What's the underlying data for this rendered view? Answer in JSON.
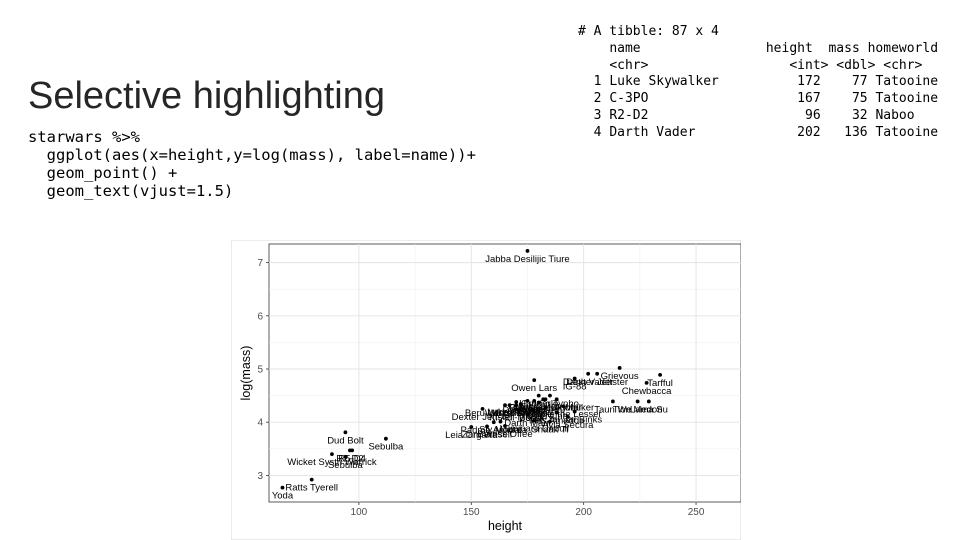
{
  "slide": {
    "title": "Selective highlighting",
    "code_lines": [
      "starwars %>%",
      "  ggplot(aes(x=height,y=log(mass), label=name))+",
      "  geom_point() +",
      "  geom_text(vjust=1.5)"
    ]
  },
  "tibble": {
    "header": "# A tibble: 87 x 4",
    "columns": [
      "name",
      "height",
      "mass",
      "homeworld"
    ],
    "types": [
      "<chr>",
      "<int>",
      "<dbl>",
      "<chr>"
    ],
    "rows": [
      {
        "idx": "1",
        "name": "Luke Skywalker",
        "height": "172",
        "mass": "77",
        "homeworld": "Tatooine"
      },
      {
        "idx": "2",
        "name": "C-3PO",
        "height": "167",
        "mass": "75",
        "homeworld": "Tatooine"
      },
      {
        "idx": "3",
        "name": "R2-D2",
        "height": "96",
        "mass": "32",
        "homeworld": "Naboo"
      },
      {
        "idx": "4",
        "name": "Darth Vader",
        "height": "202",
        "mass": "136",
        "homeworld": "Tatooine"
      }
    ]
  },
  "chart_data": {
    "type": "scatter",
    "xlabel": "height",
    "ylabel": "log(mass)",
    "xlim": [
      60,
      270
    ],
    "ylim": [
      2.5,
      7.35
    ],
    "xticks": [
      100,
      150,
      200,
      250
    ],
    "yticks": [
      3,
      4,
      5,
      6,
      7
    ],
    "grid": true,
    "points": [
      {
        "x": 175,
        "y": 7.22,
        "name": "Jabba Desilijic Tiure"
      },
      {
        "x": 66,
        "y": 2.77,
        "name": "Yoda"
      },
      {
        "x": 88,
        "y": 3.4,
        "name": "Wicket Systri Warrick"
      },
      {
        "x": 79,
        "y": 2.92,
        "name": "Ratts Tyerell"
      },
      {
        "x": 94,
        "y": 3.35,
        "name": "Sebulba"
      },
      {
        "x": 96,
        "y": 3.47,
        "name": "R2-D2"
      },
      {
        "x": 97,
        "y": 3.47,
        "name": "R5-D4"
      },
      {
        "x": 94,
        "y": 3.81,
        "name": "Dud Bolt"
      },
      {
        "x": 112,
        "y": 3.69,
        "name": "Sebulba"
      },
      {
        "x": 150,
        "y": 3.91,
        "name": "Leia Organa"
      },
      {
        "x": 172,
        "y": 4.34,
        "name": "Luke Skywalker"
      },
      {
        "x": 167,
        "y": 4.32,
        "name": "C-3PO"
      },
      {
        "x": 178,
        "y": 4.79,
        "name": "Owen Lars"
      },
      {
        "x": 165,
        "y": 4.32,
        "name": "Beru Whitesun lars"
      },
      {
        "x": 183,
        "y": 4.43,
        "name": "Biggs Darklighter"
      },
      {
        "x": 182,
        "y": 4.43,
        "name": "Obi-Wan Kenobi"
      },
      {
        "x": 188,
        "y": 4.43,
        "name": "Anakin Skywalker"
      },
      {
        "x": 180,
        "y": 4.5,
        "name": "Han Solo"
      },
      {
        "x": 170,
        "y": 4.32,
        "name": "Wedge Antilles"
      },
      {
        "x": 196,
        "y": 4.82,
        "name": "IG-88"
      },
      {
        "x": 202,
        "y": 4.91,
        "name": "Darth Vader"
      },
      {
        "x": 206,
        "y": 4.91,
        "name": "Dexter Jettster"
      },
      {
        "x": 216,
        "y": 5.02,
        "name": "Grievous"
      },
      {
        "x": 234,
        "y": 4.89,
        "name": "Tarfful"
      },
      {
        "x": 228,
        "y": 4.74,
        "name": "Chewbacca"
      },
      {
        "x": 229,
        "y": 4.39,
        "name": "Lama Su"
      },
      {
        "x": 213,
        "y": 4.39,
        "name": "Taun We"
      },
      {
        "x": 224,
        "y": 4.39,
        "name": "Tion Medon"
      },
      {
        "x": 196,
        "y": 4.2,
        "name": "Jar Jar Binks"
      },
      {
        "x": 193,
        "y": 4.1,
        "name": "Ayla Secura"
      },
      {
        "x": 175,
        "y": 4.14,
        "name": "Darth Maul"
      },
      {
        "x": 170,
        "y": 4.24,
        "name": "Ki-Adi-Mundi"
      },
      {
        "x": 160,
        "y": 4.0,
        "name": "Padmé Amidala"
      },
      {
        "x": 157,
        "y": 3.92,
        "name": "Zam Wesell"
      },
      {
        "x": 165,
        "y": 3.93,
        "name": "Barriss Offee"
      },
      {
        "x": 178,
        "y": 4.03,
        "name": "Luminara Unduli"
      },
      {
        "x": 163,
        "y": 4.01,
        "name": "Sly Moore"
      },
      {
        "x": 188,
        "y": 4.18,
        "name": "Mas Amedda"
      },
      {
        "x": 185,
        "y": 4.01,
        "name": "Shaak Ti"
      },
      {
        "x": 191,
        "y": 4.3,
        "name": "Poggle the Lesser"
      },
      {
        "x": 183,
        "y": 4.27,
        "name": "Nien Nunb"
      },
      {
        "x": 177,
        "y": 4.23,
        "name": "Bossk"
      },
      {
        "x": 180,
        "y": 4.37,
        "name": "Boba Fett"
      },
      {
        "x": 178,
        "y": 4.4,
        "name": "Lobot"
      },
      {
        "x": 170,
        "y": 4.38,
        "name": "Dooku"
      },
      {
        "x": 185,
        "y": 4.5,
        "name": "Gregar Typho"
      },
      {
        "x": 175,
        "y": 4.4,
        "name": "Ackbar"
      },
      {
        "x": 155,
        "y": 4.25,
        "name": "Dexter Jettster"
      }
    ]
  }
}
